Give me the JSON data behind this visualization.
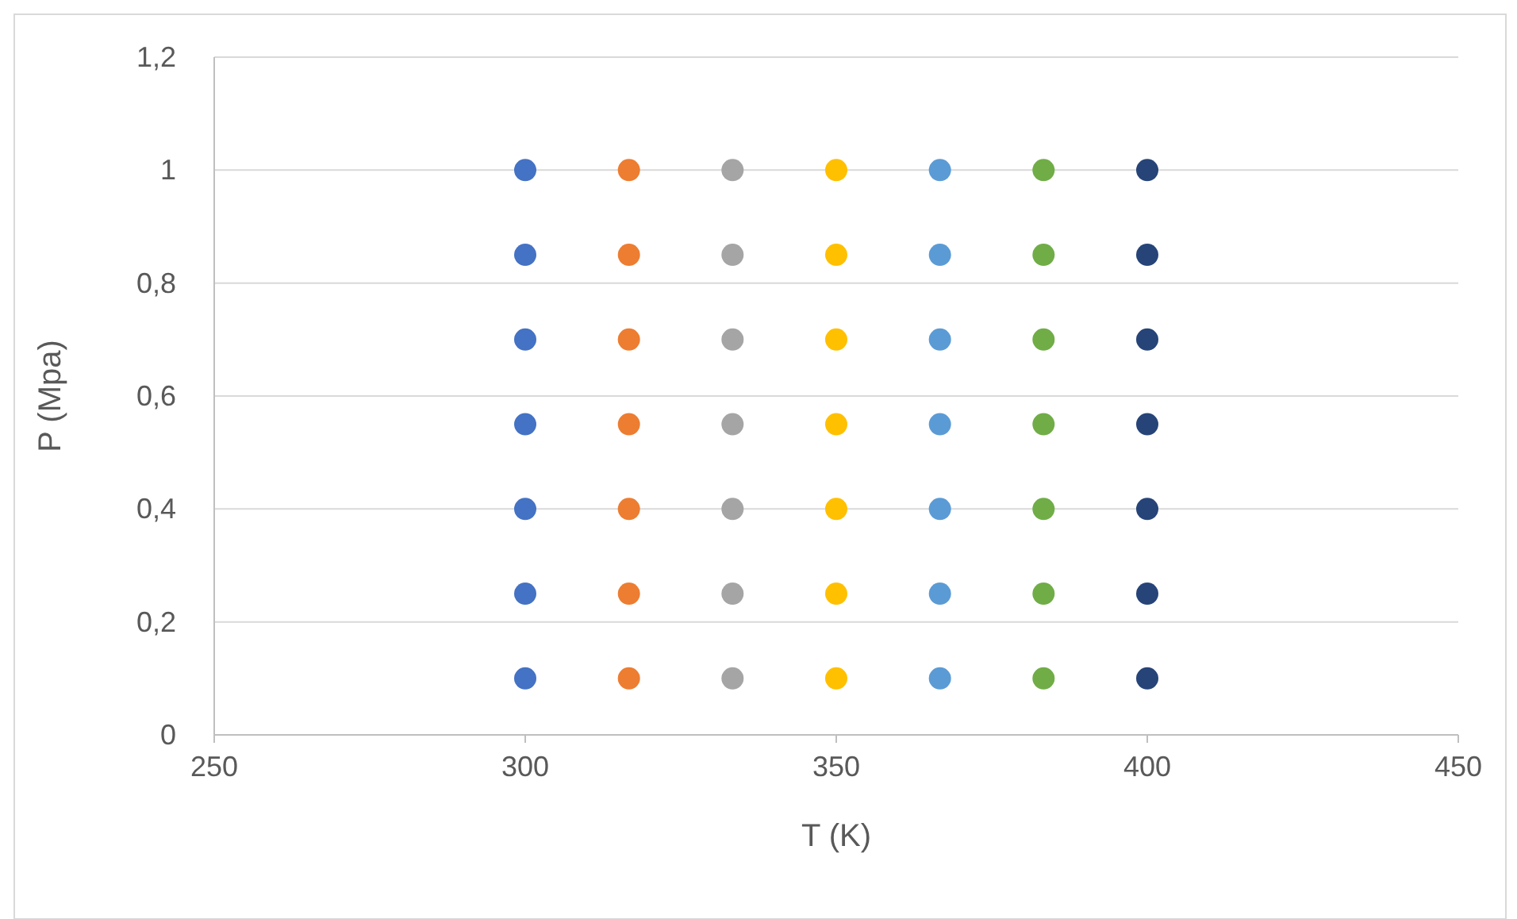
{
  "chart_data": {
    "type": "scatter",
    "xlabel": "T (K)",
    "ylabel": "P (Mpa)",
    "xlim": [
      250,
      450
    ],
    "xticks": [
      250,
      300,
      350,
      400,
      450
    ],
    "ylim": [
      0,
      1.2
    ],
    "yticks": [
      0,
      {
        "value": 0.2,
        "label": "0,2"
      },
      {
        "value": 0.4,
        "label": "0,4"
      },
      {
        "value": 0.6,
        "label": "0,6"
      },
      {
        "value": 0.8,
        "label": "0,8"
      },
      1,
      {
        "value": 1.2,
        "label": "1,2"
      }
    ],
    "grid": "y",
    "marker": "circle",
    "series": [
      {
        "color": "#4472c4",
        "x": [
          300,
          300,
          300,
          300,
          300,
          300,
          300
        ],
        "values": [
          0.1,
          0.25,
          0.4,
          0.55,
          0.7,
          0.85,
          1
        ]
      },
      {
        "color": "#ed7d31",
        "x": [
          316.67,
          316.67,
          316.67,
          316.67,
          316.67,
          316.67,
          316.67
        ],
        "values": [
          0.1,
          0.25,
          0.4,
          0.55,
          0.7,
          0.85,
          1
        ]
      },
      {
        "color": "#a5a5a5",
        "x": [
          333.33,
          333.33,
          333.33,
          333.33,
          333.33,
          333.33,
          333.33
        ],
        "values": [
          0.1,
          0.25,
          0.4,
          0.55,
          0.7,
          0.85,
          1
        ]
      },
      {
        "color": "#ffc000",
        "x": [
          350,
          350,
          350,
          350,
          350,
          350,
          350
        ],
        "values": [
          0.1,
          0.25,
          0.4,
          0.55,
          0.7,
          0.85,
          1
        ]
      },
      {
        "color": "#5b9bd5",
        "x": [
          366.67,
          366.67,
          366.67,
          366.67,
          366.67,
          366.67,
          366.67
        ],
        "values": [
          0.1,
          0.25,
          0.4,
          0.55,
          0.7,
          0.85,
          1
        ]
      },
      {
        "color": "#70ad47",
        "x": [
          383.33,
          383.33,
          383.33,
          383.33,
          383.33,
          383.33,
          383.33
        ],
        "values": [
          0.1,
          0.25,
          0.4,
          0.55,
          0.7,
          0.85,
          1
        ]
      },
      {
        "color": "#264478",
        "x": [
          400,
          400,
          400,
          400,
          400,
          400,
          400
        ],
        "values": [
          0.1,
          0.25,
          0.4,
          0.55,
          0.7,
          0.85,
          1
        ]
      }
    ]
  }
}
